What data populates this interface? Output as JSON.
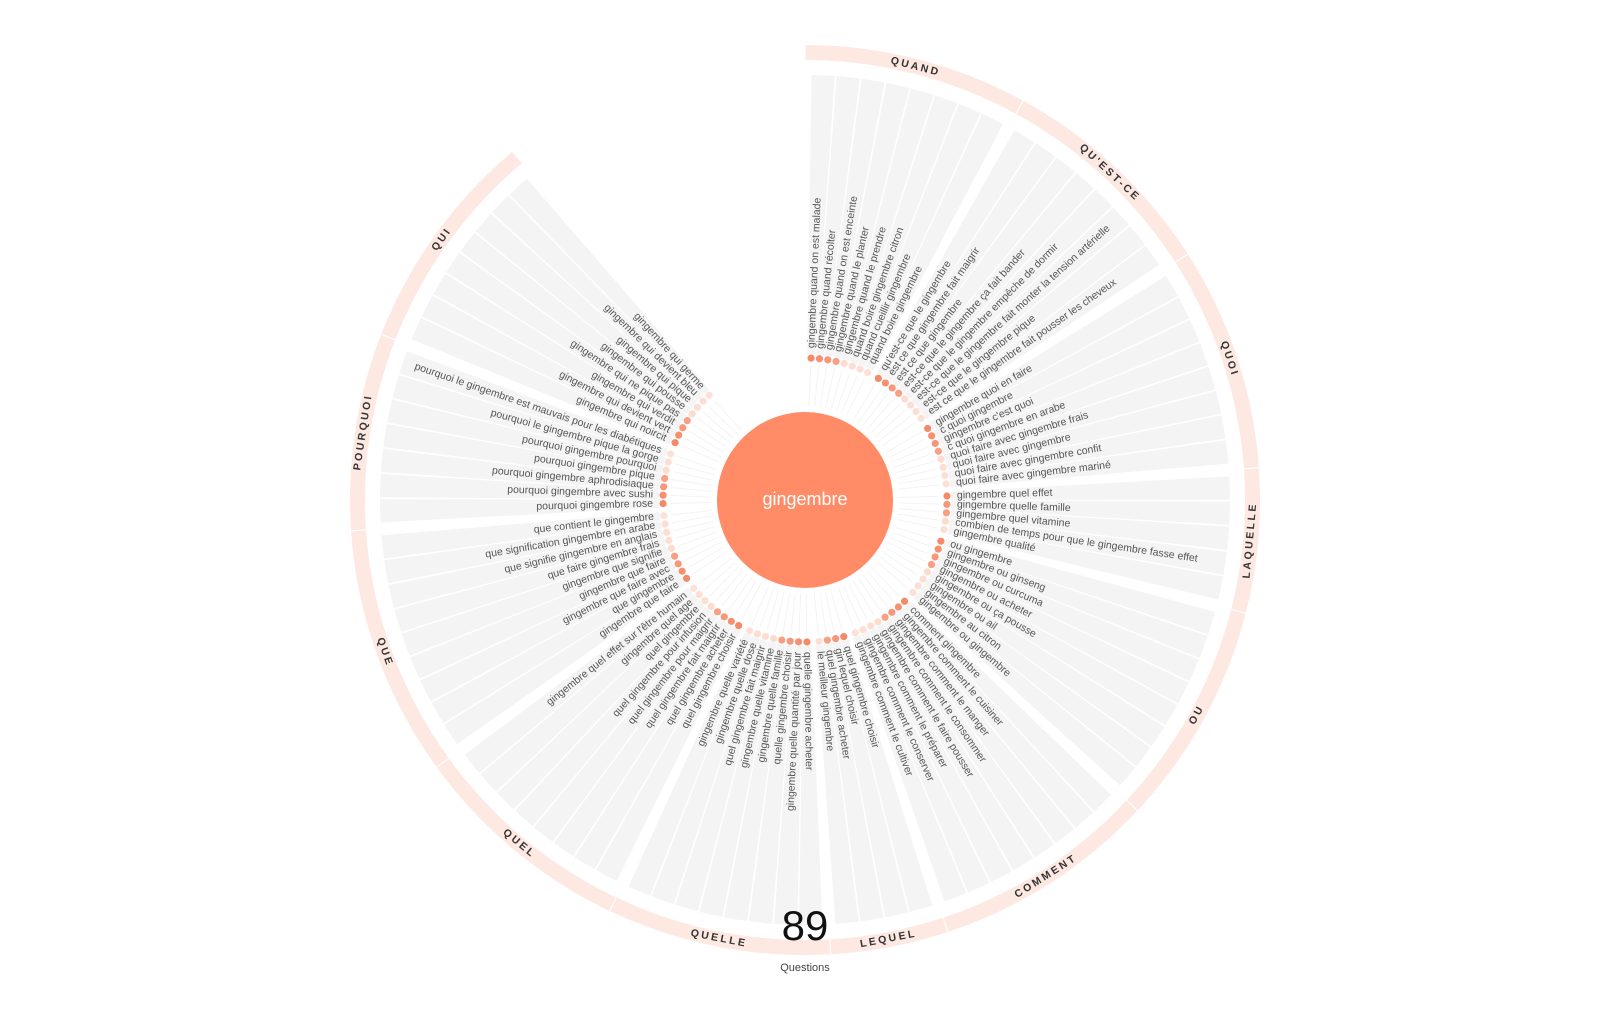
{
  "keyword": "gingembre",
  "total_count": "89",
  "total_label": "Questions",
  "colors": {
    "center": "#ff8c66",
    "ring": "#fde8e2",
    "spoke": "#f4f4f4",
    "dot_strong": "#f57a55",
    "dot_light": "#fcc9b8"
  },
  "categories": [
    {
      "name": "QUAND",
      "questions": [
        {
          "text": "gingembre quand on est malade",
          "dot": 0.8
        },
        {
          "text": "gingembre quand récolter",
          "dot": 0.7
        },
        {
          "text": "gingembre quand on est enceinte",
          "dot": 0.6
        },
        {
          "text": "gingembre quand le planter",
          "dot": 0.5
        },
        {
          "text": "gingembre quand le prendre",
          "dot": 0.4
        },
        {
          "text": "quand boire gingembre citron",
          "dot": 0.3
        },
        {
          "text": "quand cueillir gingembre",
          "dot": 0.3
        },
        {
          "text": "quand boire gingembre",
          "dot": 0.2
        }
      ]
    },
    {
      "name": "QU'EST-CE",
      "questions": [
        {
          "text": "qu'est-ce que le gingembre",
          "dot": 0.8
        },
        {
          "text": "est ce que gingembre fait maigrir",
          "dot": 0.7
        },
        {
          "text": "est ce que gingembre",
          "dot": 0.6
        },
        {
          "text": "est-ce que le gingembre ça fait bander",
          "dot": 0.5
        },
        {
          "text": "est-ce que le gingembre empêche de dormir",
          "dot": 0.4
        },
        {
          "text": "est-ce que le gingembre fait monter la tension artérielle",
          "dot": 0.3
        },
        {
          "text": "est-ce que le gingembre pique",
          "dot": 0.3
        },
        {
          "text": "est ce que le gingembre fait pousser les cheveux",
          "dot": 0.2
        }
      ]
    },
    {
      "name": "QUOI",
      "questions": [
        {
          "text": "gingembre quoi en faire",
          "dot": 0.8
        },
        {
          "text": "c quoi gingembre",
          "dot": 0.7
        },
        {
          "text": "gingembre c'est quoi",
          "dot": 0.6
        },
        {
          "text": "c quoi gingembre en arabe",
          "dot": 0.5
        },
        {
          "text": "quoi faire avec gingembre frais",
          "dot": 0.4
        },
        {
          "text": "quoi faire avec gingembre",
          "dot": 0.3
        },
        {
          "text": "quoi faire avec gingembre confit",
          "dot": 0.3
        },
        {
          "text": "quoi faire avec gingembre mariné",
          "dot": 0.2
        }
      ]
    },
    {
      "name": "LAQUELLE",
      "questions": [
        {
          "text": "gingembre quel effet",
          "dot": 0.8
        },
        {
          "text": "gingembre quelle famille",
          "dot": 0.6
        },
        {
          "text": "gingembre quel vitamine",
          "dot": 0.5
        },
        {
          "text": "combien de temps pour que le gingembre fasse effet",
          "dot": 0.4
        },
        {
          "text": "gingembre qualité",
          "dot": 0.3
        }
      ]
    },
    {
      "name": "OU",
      "questions": [
        {
          "text": "ou gingembre",
          "dot": 0.8
        },
        {
          "text": "gingembre ou ginseng",
          "dot": 0.7
        },
        {
          "text": "gingembre ou curcuma",
          "dot": 0.6
        },
        {
          "text": "gingembre ou acheter",
          "dot": 0.5
        },
        {
          "text": "gingembre ou ça pousse",
          "dot": 0.4
        },
        {
          "text": "gingembre ou ail",
          "dot": 0.3
        },
        {
          "text": "gingembre au citron",
          "dot": 0.3
        },
        {
          "text": "gingembre ou gingembre",
          "dot": 0.2
        }
      ]
    },
    {
      "name": "COMMENT",
      "questions": [
        {
          "text": "comment gingembre",
          "dot": 0.8
        },
        {
          "text": "gingembre comment le cuisiner",
          "dot": 0.7
        },
        {
          "text": "gingembre comment le manger",
          "dot": 0.6
        },
        {
          "text": "gingembre comment le consommer",
          "dot": 0.5
        },
        {
          "text": "gingembre comment le faire pousser",
          "dot": 0.4
        },
        {
          "text": "gingembre comment le préparer",
          "dot": 0.3
        },
        {
          "text": "gingembre comment le conserver",
          "dot": 0.3
        },
        {
          "text": "gingembre comment le cultiver",
          "dot": 0.2
        }
      ]
    },
    {
      "name": "LEQUEL",
      "questions": [
        {
          "text": "quel gingembre choisir",
          "dot": 0.8
        },
        {
          "text": "gin lequel choisir",
          "dot": 0.6
        },
        {
          "text": "quel gingembre acheter",
          "dot": 0.5
        },
        {
          "text": "le meilleur gingembre",
          "dot": 0.3
        }
      ]
    },
    {
      "name": "QUELLE",
      "questions": [
        {
          "text": "quelle gingembre acheter",
          "dot": 0.8
        },
        {
          "text": "gingembre quelle quantité par jour",
          "dot": 0.7
        },
        {
          "text": "quelle gingembre choisir",
          "dot": 0.6
        },
        {
          "text": "gingembre quelle famille",
          "dot": 0.5
        },
        {
          "text": "gingembre quelle vitamine",
          "dot": 0.4
        },
        {
          "text": "quel gingembre fait maigrir",
          "dot": 0.3
        },
        {
          "text": "gingembre quelle dose",
          "dot": 0.3
        },
        {
          "text": "gingembre quelle variété",
          "dot": 0.2
        }
      ]
    },
    {
      "name": "QUEL",
      "questions": [
        {
          "text": "quel gingembre choisir",
          "dot": 0.8
        },
        {
          "text": "quel gingembre acheter",
          "dot": 0.7
        },
        {
          "text": "quel gingembre fait maigrir",
          "dot": 0.6
        },
        {
          "text": "quel gingembre pour maigrir",
          "dot": 0.5
        },
        {
          "text": "quel gingembre pour infusion",
          "dot": 0.4
        },
        {
          "text": "quel gingembre",
          "dot": 0.3
        },
        {
          "text": "gingembre quel age",
          "dot": 0.3
        },
        {
          "text": "gingembre quel effet sur l'être humain",
          "dot": 0.2
        }
      ]
    },
    {
      "name": "QUE",
      "questions": [
        {
          "text": "gingembre que faire",
          "dot": 0.8
        },
        {
          "text": "que gingembre",
          "dot": 0.7
        },
        {
          "text": "gingembre que faire avec",
          "dot": 0.6
        },
        {
          "text": "gingembre que faire",
          "dot": 0.5
        },
        {
          "text": "gingembre que signifie",
          "dot": 0.4
        },
        {
          "text": "que faire gingembre frais",
          "dot": 0.3
        },
        {
          "text": "que signifie gingembre en anglais",
          "dot": 0.3
        },
        {
          "text": "que signification gingembre en arabe",
          "dot": 0.3
        },
        {
          "text": "que contient le gingembre",
          "dot": 0.2
        }
      ]
    },
    {
      "name": "POURQUOI",
      "questions": [
        {
          "text": "pourquoi gingembre rose",
          "dot": 0.8
        },
        {
          "text": "pourquoi gingembre avec sushi",
          "dot": 0.7
        },
        {
          "text": "pourquoi gingembre aphrodisiaque",
          "dot": 0.6
        },
        {
          "text": "pourquoi gingembre pique",
          "dot": 0.5
        },
        {
          "text": "pourquoi gingembre pourquoi",
          "dot": 0.4
        },
        {
          "text": "pourquoi le gingembre pique la gorge",
          "dot": 0.3
        },
        {
          "text": "pourquoi le gingembre est mauvais pour les diabétiques",
          "dot": 0.2
        }
      ]
    },
    {
      "name": "QUI",
      "questions": [
        {
          "text": "gingembre qui noircit",
          "dot": 0.8
        },
        {
          "text": "gingembre qui devient vert",
          "dot": 0.7
        },
        {
          "text": "gingembre qui verdit",
          "dot": 0.6
        },
        {
          "text": "gingembre qui ne pique pas",
          "dot": 0.5
        },
        {
          "text": "gingembre qui pousse",
          "dot": 0.4
        },
        {
          "text": "gingembre qui pique",
          "dot": 0.3
        },
        {
          "text": "gingembre qui devient bleu",
          "dot": 0.3
        },
        {
          "text": "gingembre qui germe",
          "dot": 0.2
        }
      ]
    }
  ]
}
